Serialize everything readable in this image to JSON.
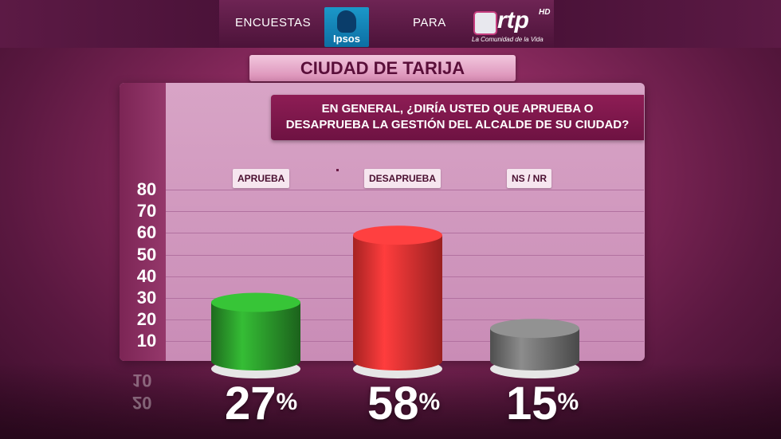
{
  "header": {
    "left_text": "ENCUESTAS",
    "middle_text": "PARA",
    "ipsos_label": "Ipsos",
    "rtp_word": "rtp",
    "rtp_hd": "HD",
    "rtp_tagline": "La Comunidad de la Vida"
  },
  "city_title": "CIUDAD DE TARIJA",
  "question_line1": "EN GENERAL, ¿DIRÍA USTED QUE APRUEBA O",
  "question_line2": "DESAPRUEBA LA GESTIÓN DEL ALCALDE DE SU CIUDAD?",
  "colors": {
    "aprueba": "#2ea42e",
    "desaprueba": "#ff3535",
    "nsnr": "#7a7a7a"
  },
  "reflection_ticks": [
    "10",
    "20"
  ],
  "chart_data": {
    "type": "bar",
    "categories": [
      "APRUEBA",
      "DESAPRUEBA",
      "NS / NR"
    ],
    "values": [
      27,
      58,
      15
    ],
    "value_labels": [
      "27",
      "58",
      "15"
    ],
    "value_suffix": "%",
    "yticks": [
      "80",
      "70",
      "60",
      "50",
      "40",
      "30",
      "20",
      "10"
    ],
    "ylim": [
      0,
      80
    ],
    "title": "",
    "xlabel": "",
    "ylabel": "",
    "grid": true
  }
}
